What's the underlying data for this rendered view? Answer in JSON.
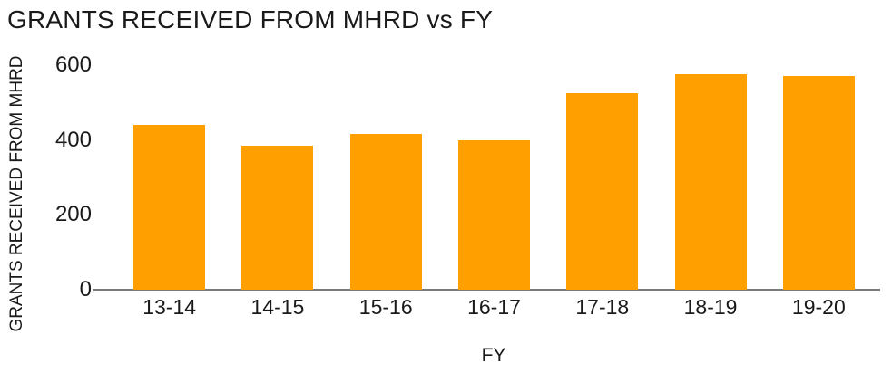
{
  "chart_data": {
    "type": "bar",
    "title": "GRANTS RECEIVED FROM MHRD vs FY",
    "xlabel": "FY",
    "ylabel": "GRANTS RECEIVED FROM MHRD",
    "categories": [
      "13-14",
      "14-15",
      "15-16",
      "16-17",
      "17-18",
      "18-19",
      "19-20"
    ],
    "values": [
      440,
      385,
      415,
      400,
      525,
      575,
      570
    ],
    "ylim": [
      0,
      600
    ],
    "yticks": [
      0,
      200,
      400,
      600
    ],
    "grid": false,
    "legend": "none",
    "bar_color": "#FFA000",
    "axis_line_color": "#7a7a7a",
    "text_color": "#1a1a1a",
    "background_color": "#ffffff"
  }
}
